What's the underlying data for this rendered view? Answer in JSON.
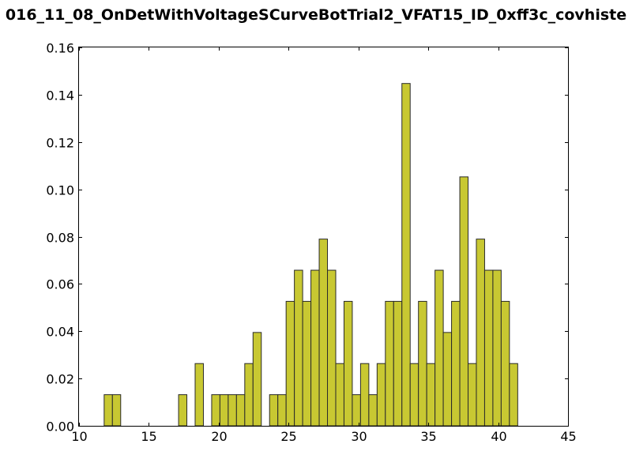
{
  "chart_data": {
    "type": "bar",
    "title": "016_11_08_OnDetWithVoltageSCurveBotTrial2_VFAT15_ID_0xff3c_covhiste",
    "xlabel": "",
    "ylabel": "",
    "xlim": [
      10,
      45
    ],
    "ylim": [
      0,
      0.16
    ],
    "x_ticks": [
      "10",
      "15",
      "20",
      "25",
      "30",
      "35",
      "40",
      "45"
    ],
    "y_ticks": [
      "0.00",
      "0.02",
      "0.04",
      "0.06",
      "0.08",
      "0.10",
      "0.12",
      "0.14",
      "0.16"
    ],
    "bar_color": "#c8c832",
    "edge_color": "#2a2a2a",
    "grid": false,
    "bin_start": 11.8,
    "bin_width": 0.592,
    "values": [
      0.01316,
      0.01316,
      0,
      0,
      0,
      0,
      0,
      0,
      0,
      0.01316,
      0,
      0.02632,
      0,
      0.01316,
      0.01316,
      0.01316,
      0.01316,
      0.02632,
      0.03947,
      0,
      0.01316,
      0.01316,
      0.05263,
      0.06579,
      0.05263,
      0.06579,
      0.07895,
      0.06579,
      0.02632,
      0.05263,
      0.01316,
      0.02632,
      0.01316,
      0.02632,
      0.05263,
      0.05263,
      0.14474,
      0.02632,
      0.05263,
      0.02632,
      0.06579,
      0.03947,
      0.05263,
      0.10526,
      0.02632,
      0.07895,
      0.06579,
      0.06579,
      0.05263,
      0.02632
    ]
  }
}
